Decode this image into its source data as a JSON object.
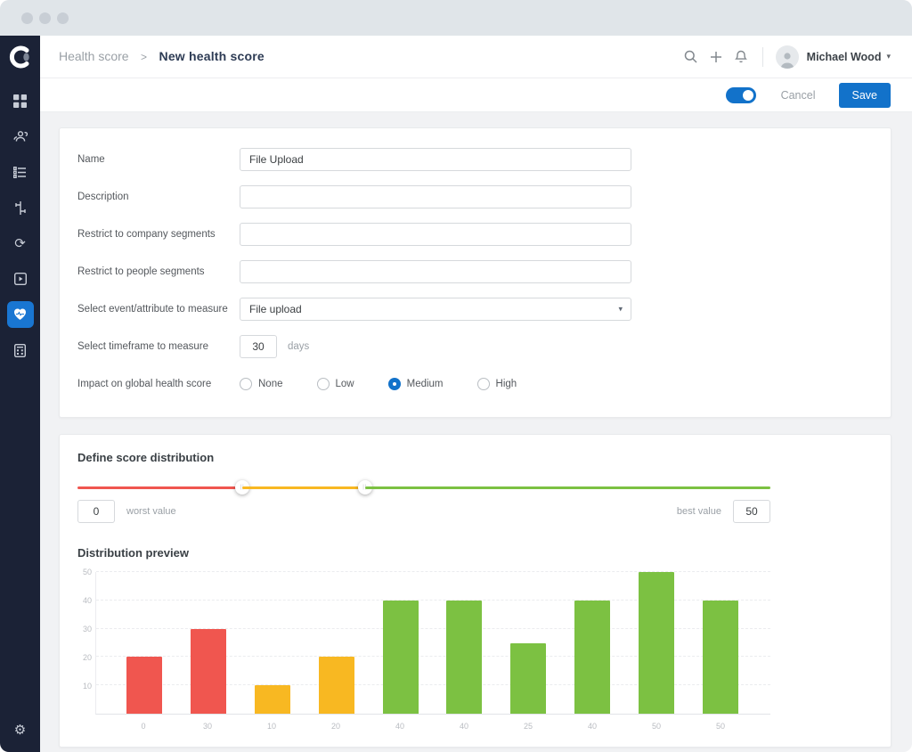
{
  "window": {
    "controls": [
      "dot",
      "dot",
      "dot"
    ]
  },
  "sidebar": {
    "logo": "app-logo",
    "items": [
      {
        "name": "dashboard",
        "icon": "grid-icon",
        "active": false
      },
      {
        "name": "accounts",
        "icon": "people-icon",
        "active": false
      },
      {
        "name": "tasks",
        "icon": "checklist-icon",
        "active": false
      },
      {
        "name": "workflow",
        "icon": "workflow-icon",
        "active": false
      },
      {
        "name": "sync",
        "icon": "sync-icon",
        "active": false
      },
      {
        "name": "playbook",
        "icon": "playbook-icon",
        "active": false
      },
      {
        "name": "health-score",
        "icon": "heart-pulse-icon",
        "active": true
      },
      {
        "name": "calculator",
        "icon": "calculator-icon",
        "active": false
      }
    ],
    "bottom_item": {
      "name": "settings",
      "icon": "gear-icon"
    }
  },
  "header": {
    "breadcrumb": {
      "root": "Health score",
      "separator": ">",
      "current": "New health score"
    },
    "icons": [
      "search-icon",
      "plus-icon",
      "bell-icon"
    ],
    "user": {
      "name": "Michael Wood",
      "caret": "▾"
    }
  },
  "toolbar": {
    "toggle_on": true,
    "cancel_label": "Cancel",
    "save_label": "Save",
    "accent_color": "#1272ca"
  },
  "form": {
    "rows": [
      {
        "label": "Name",
        "type": "text",
        "value": "File Upload"
      },
      {
        "label": "Description",
        "type": "text",
        "value": ""
      },
      {
        "label": "Restrict to company segments",
        "type": "text",
        "value": ""
      },
      {
        "label": "Restrict to people segments",
        "type": "text",
        "value": ""
      },
      {
        "label": "Select event/attribute to measure",
        "type": "select",
        "value": "File upload",
        "caret": "▾"
      },
      {
        "label": "Select timeframe to measure",
        "type": "number",
        "value": "30",
        "suffix": "days"
      },
      {
        "label": "Impact on global health score",
        "type": "radio",
        "options": [
          "None",
          "Low",
          "Medium",
          "High"
        ],
        "selected": 2
      }
    ]
  },
  "distribution": {
    "title": "Define score distribution",
    "worst_value": "0",
    "worst_label": "worst value",
    "best_label": "best value",
    "best_value": "50",
    "slider": {
      "segments": [
        {
          "band": "red",
          "color": "#f0564f",
          "width_pct": 23.8
        },
        {
          "band": "yellow",
          "color": "#f8b822",
          "width_pct": 17.7
        },
        {
          "band": "green",
          "color": "#7cc142",
          "width_pct": 58.5
        }
      ]
    }
  },
  "chart_data": {
    "type": "bar",
    "title": "Distribution preview",
    "categories": [
      "0",
      "30",
      "10",
      "20",
      "40",
      "40",
      "25",
      "40",
      "50",
      "50"
    ],
    "values": [
      20,
      30,
      10,
      20,
      40,
      40,
      25,
      40,
      50,
      40
    ],
    "bar_colors": [
      "#f0564f",
      "#f0564f",
      "#f8b822",
      "#f8b822",
      "#7cc142",
      "#7cc142",
      "#7cc142",
      "#7cc142",
      "#7cc142",
      "#7cc142"
    ],
    "xlabel": "",
    "ylabel": "",
    "ylim": [
      0,
      50
    ],
    "yticks": [
      10,
      20,
      30,
      40,
      50
    ],
    "grid": true,
    "legend": false
  }
}
